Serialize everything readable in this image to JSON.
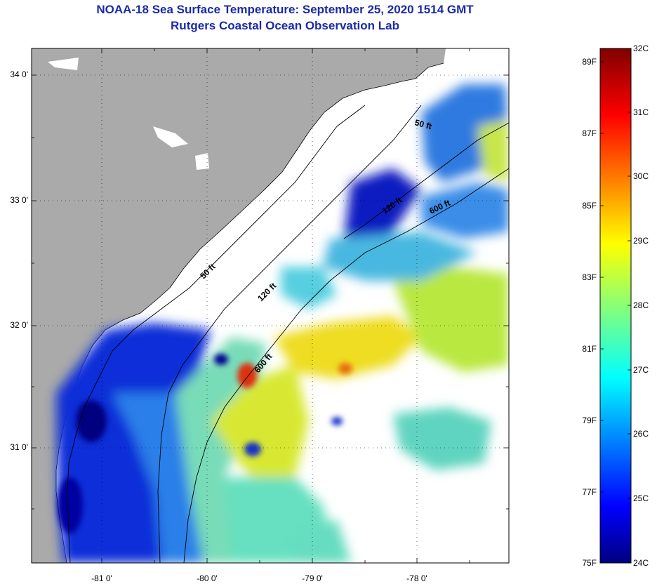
{
  "title": "NOAA-18 Sea Surface Temperature:  September 25, 2020 1514 GMT",
  "subtitle": "Rutgers Coastal Ocean Observation Lab",
  "y_axis_labels": [
    "34 0'",
    "33 0'",
    "32 0'",
    "31 0'"
  ],
  "x_axis_labels": [
    "-81 0'",
    "-80 0'",
    "-79 0'",
    "-78 0'"
  ],
  "isobath_labels": [
    "50 ft",
    "120 ft",
    "600 ft",
    "50 ft",
    "120 ft",
    "600 ft"
  ],
  "colorbar": {
    "fahrenheit": [
      "89F",
      "87F",
      "85F",
      "83F",
      "81F",
      "79F",
      "77F",
      "75F"
    ],
    "celsius": [
      "32C",
      "31C",
      "30C",
      "29C",
      "28C",
      "27C",
      "26C",
      "25C",
      "24C"
    ]
  },
  "colors": {
    "land": "#aaaaaa",
    "title": "#1c2aa8",
    "cold": "#000080",
    "warm": "#800000"
  }
}
